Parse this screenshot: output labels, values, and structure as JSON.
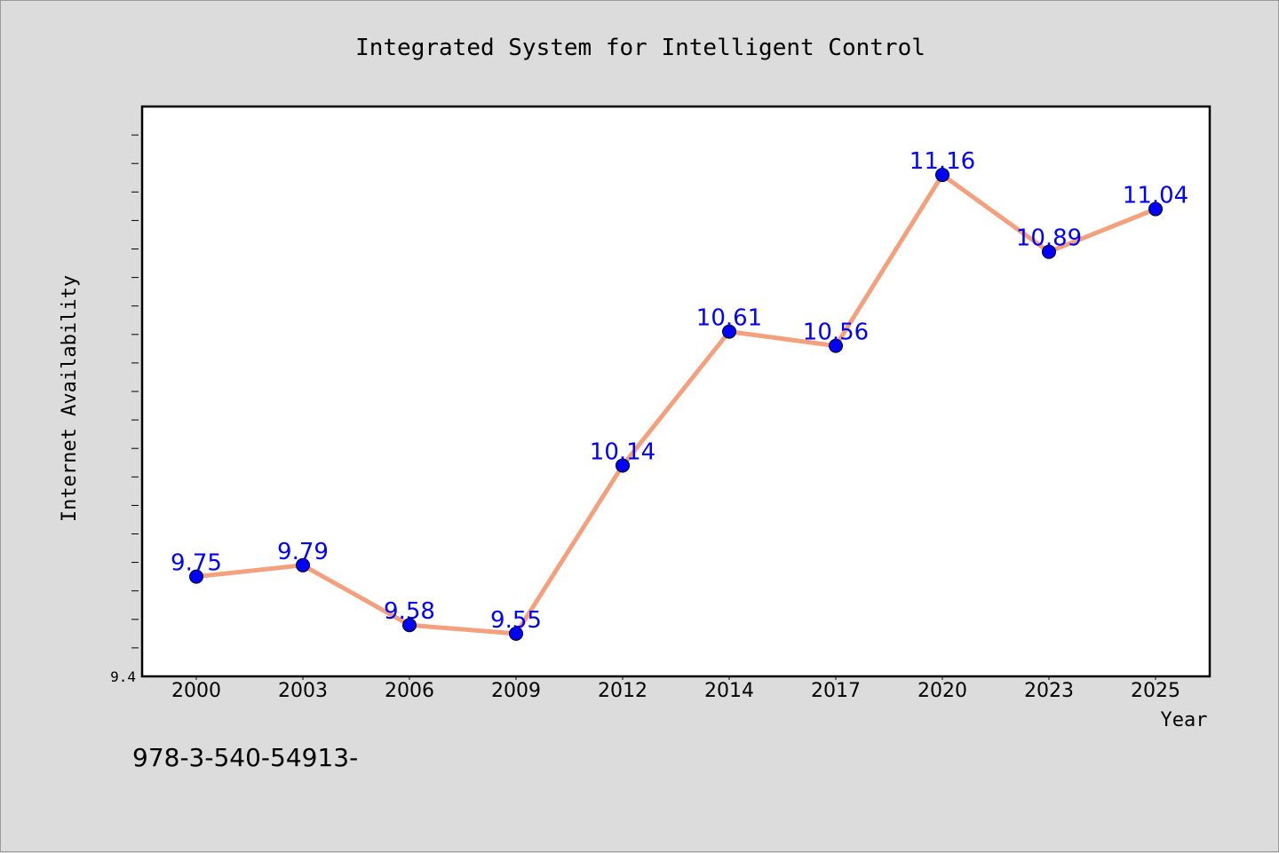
{
  "chart_data": {
    "type": "line",
    "title": "Integrated System for Intelligent Control",
    "xlabel": "Year",
    "ylabel": "Internet Availability",
    "categories": [
      "2000",
      "2003",
      "2006",
      "2009",
      "2012",
      "2014",
      "2017",
      "2020",
      "2023",
      "2025"
    ],
    "series": [
      {
        "values": [
          9.75,
          9.79,
          9.58,
          9.55,
          10.14,
          10.61,
          10.56,
          11.16,
          10.89,
          11.04
        ]
      }
    ],
    "data_labels": [
      "9.75",
      "9.79",
      "9.58",
      "9.55",
      "10.14",
      "10.61",
      "10.56",
      "11.16",
      "10.89",
      "11.04"
    ],
    "ylim": [
      9.4,
      11.4
    ],
    "ytick_labels": [
      "9.4"
    ],
    "grid": false,
    "colors": {
      "line": "#f4a07c",
      "marker": "#0000ff",
      "label": "#0000ff",
      "background": "#dcdcdc",
      "plot_bg": "#ffffff"
    }
  },
  "footer": {
    "text": "978-3-540-54913-"
  }
}
